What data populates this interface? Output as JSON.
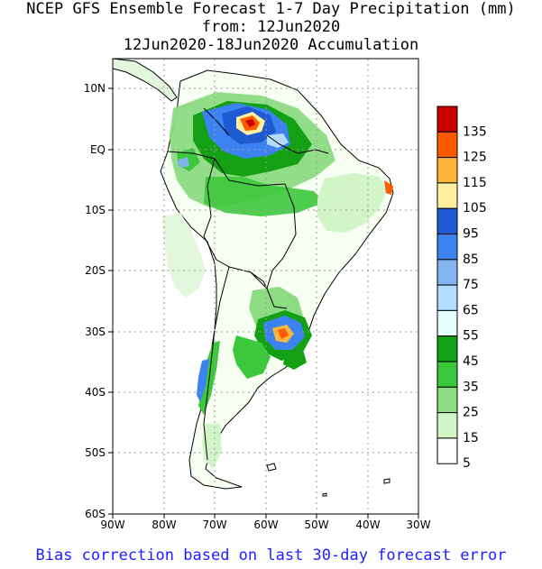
{
  "header": {
    "line1": "NCEP GFS Ensemble Forecast 1-7 Day Precipitation (mm)",
    "line2": "from: 12Jun2020",
    "line3": "12Jun2020-18Jun2020 Accumulation"
  },
  "axes": {
    "lat_labels": [
      "10N",
      "EQ",
      "10S",
      "20S",
      "30S",
      "40S",
      "50S",
      "60S"
    ],
    "lon_labels": [
      "90W",
      "80W",
      "70W",
      "60W",
      "50W",
      "40W",
      "30W"
    ]
  },
  "legend": {
    "levels": [
      "135",
      "125",
      "115",
      "105",
      "95",
      "85",
      "75",
      "65",
      "55",
      "45",
      "35",
      "25",
      "15",
      "5"
    ],
    "colors": [
      "#c80000",
      "#ff5a00",
      "#ffb43c",
      "#fff0a0",
      "#1e5ad2",
      "#3c82f0",
      "#82b4f0",
      "#b4dcff",
      "#e6ffff",
      "#14a014",
      "#3cc83c",
      "#8cdc82",
      "#d2f5c8",
      "#ffffff"
    ]
  },
  "footer": {
    "note": "Bias correction based on last 30-day forecast error"
  }
}
